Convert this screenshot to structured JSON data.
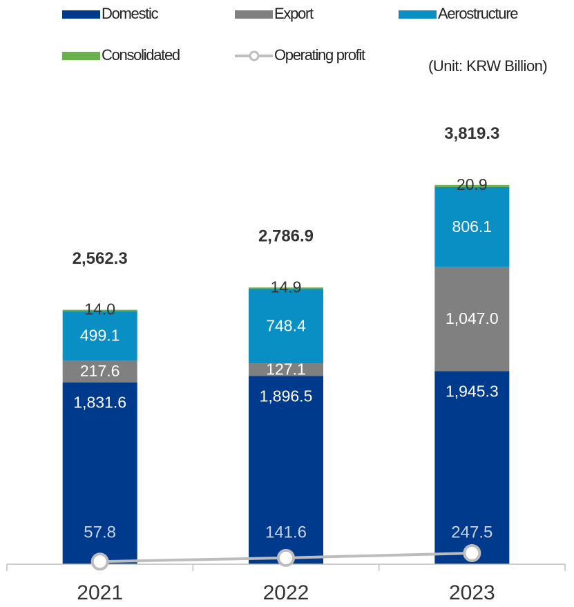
{
  "chart_data": {
    "type": "stacked-bar-line",
    "annotation": "(Unit: KRW Billion)",
    "categories": [
      "2021",
      "2022",
      "2023"
    ],
    "series": [
      {
        "name": "Domestic",
        "color": "#003a8c",
        "values": [
          1831.6,
          1896.5,
          1945.3
        ],
        "value_labels": [
          "1,831.6",
          "1,896.5",
          "1,945.3"
        ]
      },
      {
        "name": "Export",
        "color": "#808080",
        "values": [
          217.6,
          127.1,
          1047.0
        ],
        "value_labels": [
          "217.6",
          "127.1",
          "1,047.0"
        ]
      },
      {
        "name": "Aerostructure",
        "color": "#0a8fc4",
        "values": [
          499.1,
          748.4,
          806.1
        ],
        "value_labels": [
          "499.1",
          "748.4",
          "806.1"
        ]
      },
      {
        "name": "Consolidated",
        "color": "#6ab04c",
        "values": [
          14.0,
          14.9,
          20.9
        ],
        "value_labels": [
          "14.0",
          "14.9",
          "20.9"
        ]
      },
      {
        "name": "Operating profit",
        "color": "#bdbdbd",
        "type": "line",
        "axis": "y2",
        "values": [
          57.8,
          141.6,
          247.5
        ]
      }
    ],
    "totals": [
      2562.3,
      2786.9,
      3819.3
    ],
    "total_labels": [
      "2,562.3",
      "2,786.9",
      "3,819.3"
    ],
    "ylim": [
      0,
      4500
    ],
    "y2lim": [
      0,
      10000
    ]
  }
}
